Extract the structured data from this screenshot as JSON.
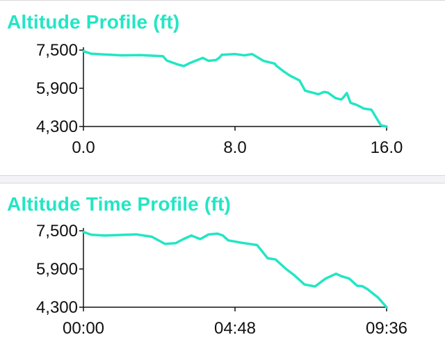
{
  "colors": {
    "accent": "#22e6c4",
    "axis": "#111111",
    "separator": "#d8d8dc",
    "band": "#f2f2f7"
  },
  "chart_data": [
    {
      "type": "line",
      "title": "Altitude Profile (ft)",
      "ylim": [
        4300,
        7500
      ],
      "xlim": [
        0,
        16
      ],
      "y_ticks": [
        "7,500",
        "5,900",
        "4,300"
      ],
      "x_ticks": [
        "0.0",
        "8.0",
        "16.0"
      ],
      "series": [
        {
          "x": [
            0,
            0.4,
            1.0,
            1.5,
            2.0,
            3.0,
            4.2,
            4.4,
            5.0,
            5.3,
            5.6,
            6.3,
            6.6,
            7.0,
            7.2,
            7.3,
            8.0,
            8.5,
            8.9,
            9.5,
            10.1,
            10.2,
            10.6,
            10.9,
            11.4,
            11.7,
            12.4,
            12.7,
            12.9,
            13.3,
            13.6,
            13.7,
            13.9,
            14.1,
            14.4,
            14.8,
            15.2,
            15.7,
            16.0
          ],
          "y": [
            7450,
            7350,
            7320,
            7300,
            7280,
            7290,
            7240,
            7060,
            6890,
            6830,
            6950,
            7170,
            7050,
            7080,
            7200,
            7300,
            7330,
            7280,
            7330,
            7050,
            6930,
            6830,
            6590,
            6430,
            6230,
            5800,
            5650,
            5750,
            5720,
            5490,
            5430,
            5500,
            5700,
            5290,
            5210,
            5050,
            5000,
            4350,
            4300
          ]
        }
      ]
    },
    {
      "type": "line",
      "title": "Altitude Time Profile (ft)",
      "ylim": [
        4300,
        7500
      ],
      "xlim": [
        0,
        576
      ],
      "y_ticks": [
        "7,500",
        "5,900",
        "4,300"
      ],
      "x_ticks": [
        "00:00",
        "04:48",
        "09:36"
      ],
      "series": [
        {
          "x": [
            0,
            15,
            40,
            100,
            130,
            155,
            175,
            190,
            205,
            222,
            238,
            255,
            265,
            275,
            300,
            330,
            350,
            365,
            385,
            400,
            420,
            440,
            460,
            480,
            490,
            505,
            520,
            530,
            540,
            560,
            576
          ],
          "y": [
            7450,
            7330,
            7300,
            7350,
            7250,
            6950,
            6980,
            7150,
            7300,
            7150,
            7350,
            7380,
            7300,
            7100,
            7000,
            6900,
            6350,
            6300,
            5900,
            5650,
            5250,
            5170,
            5500,
            5700,
            5600,
            5500,
            5200,
            5180,
            5050,
            4700,
            4300
          ]
        }
      ]
    }
  ]
}
